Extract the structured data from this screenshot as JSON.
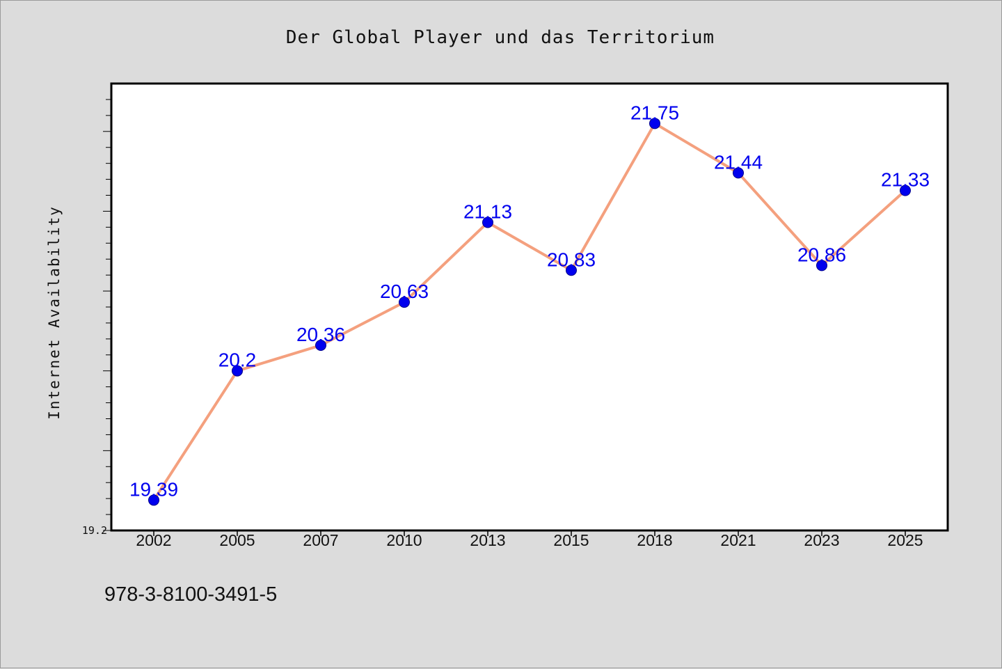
{
  "chart_data": {
    "type": "line",
    "title": "Der Global Player und das Territorium",
    "ylabel": "Internet Availability",
    "xlabel": "",
    "categories": [
      "2002",
      "2005",
      "2007",
      "2010",
      "2013",
      "2015",
      "2018",
      "2021",
      "2023",
      "2025"
    ],
    "series": [
      {
        "values": [
          19.39,
          20.2,
          20.36,
          20.63,
          21.13,
          20.83,
          21.75,
          21.44,
          20.86,
          21.33
        ],
        "data_labels": [
          "19.39",
          "20.2",
          "20.36",
          "20.63",
          "21.13",
          "20.83",
          "21.75",
          "21.44",
          "20.86",
          "21.33"
        ]
      }
    ],
    "ylim": [
      19.2,
      22.0
    ],
    "y_tick_labels": [
      "19.2"
    ],
    "grid": false,
    "legend": "none",
    "line_color": "#f4a07e",
    "marker_color": "#0000ee",
    "label_color": "#0000ee"
  },
  "footnote": "978-3-8100-3491-5"
}
